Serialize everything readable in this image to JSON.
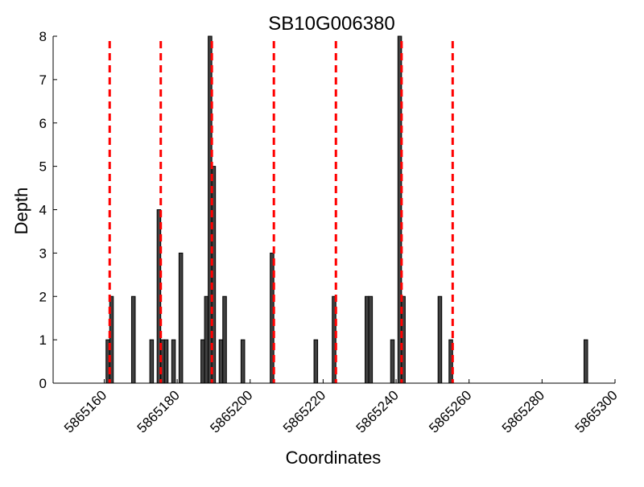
{
  "chart_data": {
    "type": "bar",
    "title": "SB10G006380",
    "xlabel": "Coordinates",
    "ylabel": "Depth",
    "xlim": [
      5865146,
      5865300
    ],
    "ylim": [
      0,
      8
    ],
    "xticks": [
      5865160,
      5865180,
      5865200,
      5865220,
      5865240,
      5865260,
      5865280,
      5865300
    ],
    "xtick_labels": [
      "5865160",
      "5865180",
      "5865200",
      "5865220",
      "5865240",
      "5865260",
      "5865280",
      "5865300"
    ],
    "yticks": [
      0,
      1,
      2,
      3,
      4,
      5,
      6,
      7,
      8
    ],
    "ytick_labels": [
      "0",
      "1",
      "2",
      "3",
      "4",
      "5",
      "6",
      "7",
      "8"
    ],
    "bar_width": 1,
    "bar_color": "#404040",
    "bar_edge_color": "#000000",
    "bars": [
      {
        "x": 5865161,
        "y": 1
      },
      {
        "x": 5865162,
        "y": 2
      },
      {
        "x": 5865168,
        "y": 2
      },
      {
        "x": 5865173,
        "y": 1
      },
      {
        "x": 5865175,
        "y": 4
      },
      {
        "x": 5865176,
        "y": 1
      },
      {
        "x": 5865177,
        "y": 1
      },
      {
        "x": 5865179,
        "y": 1
      },
      {
        "x": 5865181,
        "y": 3
      },
      {
        "x": 5865187,
        "y": 1
      },
      {
        "x": 5865188,
        "y": 2
      },
      {
        "x": 5865189,
        "y": 8
      },
      {
        "x": 5865190,
        "y": 5
      },
      {
        "x": 5865192,
        "y": 1
      },
      {
        "x": 5865193,
        "y": 2
      },
      {
        "x": 5865198,
        "y": 1
      },
      {
        "x": 5865206,
        "y": 3
      },
      {
        "x": 5865218,
        "y": 1
      },
      {
        "x": 5865223,
        "y": 2
      },
      {
        "x": 5865232,
        "y": 2
      },
      {
        "x": 5865233,
        "y": 2
      },
      {
        "x": 5865239,
        "y": 1
      },
      {
        "x": 5865241,
        "y": 8
      },
      {
        "x": 5865242,
        "y": 2
      },
      {
        "x": 5865252,
        "y": 2
      },
      {
        "x": 5865255,
        "y": 1
      },
      {
        "x": 5865292,
        "y": 1
      }
    ],
    "vlines": [
      5865161.5,
      5865175.5,
      5865189.5,
      5865206.5,
      5865223.5,
      5865241.5,
      5865255.5
    ],
    "vline_color": "#ff0000",
    "vline_style": "dashed",
    "grid": false,
    "legend": "none"
  }
}
